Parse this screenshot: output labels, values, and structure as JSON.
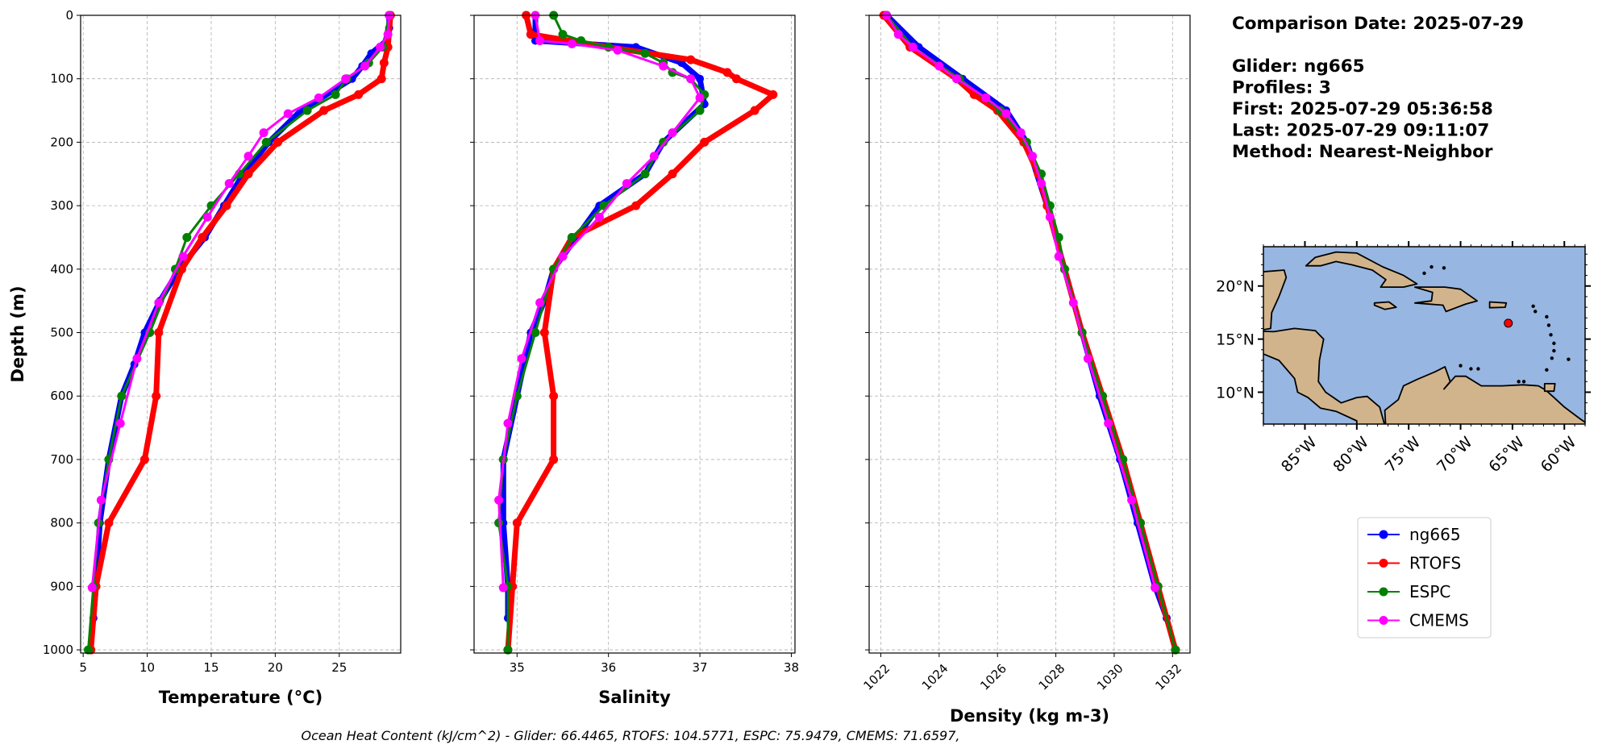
{
  "info": {
    "lines": [
      "Comparison Date: 2025-07-29",
      "",
      "Glider: ng665",
      "Profiles: 3",
      "First: 2025-07-29 05:36:58",
      "Last: 2025-07-29 09:11:07",
      "Method: Nearest-Neighbor"
    ]
  },
  "footer": "Ocean Heat Content (kJ/cm^2) - Glider: 66.4465,  RTOFS: 104.5771,  ESPC: 75.9479,  CMEMS: 71.6597,",
  "legend": [
    {
      "name": "ng665",
      "color": "#0000ff"
    },
    {
      "name": "RTOFS",
      "color": "#ff0000"
    },
    {
      "name": "ESPC",
      "color": "#008000"
    },
    {
      "name": "CMEMS",
      "color": "#ff00ff"
    }
  ],
  "map": {
    "lon_range": [
      -89,
      -58
    ],
    "lat_range": [
      7,
      23.7
    ],
    "lon_ticks": [
      -85,
      -80,
      -75,
      -70,
      -65,
      -60
    ],
    "lon_tick_labels": [
      "85°W",
      "80°W",
      "75°W",
      "70°W",
      "65°W",
      "60°W"
    ],
    "lat_ticks": [
      10,
      15,
      20
    ],
    "lat_tick_labels": [
      "10°N",
      "15°N",
      "20°N"
    ],
    "glider_position": {
      "lon": -65.4,
      "lat": 16.5
    },
    "ocean_color": "#97b6e1",
    "land_color": "#d2b48c"
  },
  "chart_data": [
    {
      "type": "line",
      "title": "",
      "xlabel": "Temperature (°C)",
      "ylabel": "Depth (m)",
      "xlim": [
        4.8,
        29.8
      ],
      "ylim": [
        1005,
        0
      ],
      "xticks": [
        5,
        10,
        15,
        20,
        25
      ],
      "yticks": [
        0,
        100,
        200,
        300,
        400,
        500,
        600,
        700,
        800,
        900,
        1000
      ],
      "grid": true,
      "series": [
        {
          "name": "ng665",
          "depth": [
            0,
            20,
            40,
            60,
            80,
            100,
            150,
            200,
            250,
            300,
            350,
            400,
            450,
            500,
            550,
            600,
            700,
            800,
            900,
            950
          ],
          "values": [
            28.9,
            28.9,
            28.7,
            27.5,
            26.8,
            26,
            22,
            19.5,
            17.5,
            16,
            14.5,
            12.5,
            11,
            9.8,
            9,
            8,
            7,
            6.3,
            6,
            5.8
          ]
        },
        {
          "name": "RTOFS",
          "depth": [
            0,
            50,
            75,
            100,
            125,
            150,
            200,
            250,
            300,
            350,
            400,
            500,
            600,
            700,
            800,
            900,
            1000
          ],
          "values": [
            29,
            28.8,
            28.5,
            28.3,
            26.5,
            23.8,
            20.2,
            17.9,
            16.2,
            14.3,
            12.7,
            10.9,
            10.7,
            9.8,
            7,
            6,
            5.6
          ]
        },
        {
          "name": "ESPC",
          "depth": [
            0,
            50,
            75,
            100,
            125,
            150,
            200,
            250,
            300,
            350,
            400,
            500,
            600,
            700,
            800,
            900,
            1000
          ],
          "values": [
            28.9,
            28.4,
            27.3,
            25.6,
            24.7,
            22.5,
            19.3,
            17.2,
            15,
            13.1,
            12.2,
            10.2,
            8,
            7,
            6.2,
            5.8,
            5.4
          ]
        },
        {
          "name": "CMEMS",
          "depth": [
            0,
            30,
            50,
            80,
            100,
            130,
            155,
            185,
            222,
            265,
            318,
            380,
            453,
            541,
            643,
            764,
            902
          ],
          "values": [
            28.9,
            28.8,
            28.2,
            27,
            25.5,
            23.4,
            21,
            19.1,
            17.9,
            16.4,
            14.7,
            12.8,
            10.9,
            9.2,
            7.9,
            6.4,
            5.7
          ]
        }
      ]
    },
    {
      "type": "line",
      "xlabel": "Salinity",
      "xlim": [
        34.53,
        38.04
      ],
      "ylim": [
        1005,
        0
      ],
      "xticks": [
        35,
        36,
        37,
        38
      ],
      "grid": true,
      "series": [
        {
          "name": "ng665",
          "depth": [
            0,
            40,
            50,
            75,
            100,
            140,
            200,
            250,
            300,
            400,
            450,
            500,
            600,
            700,
            800,
            900,
            950
          ],
          "values": [
            35.2,
            35.2,
            36.3,
            36.8,
            37.0,
            37.05,
            36.6,
            36.4,
            35.9,
            35.4,
            35.3,
            35.15,
            35.0,
            34.85,
            34.85,
            34.9,
            34.9
          ]
        },
        {
          "name": "RTOFS",
          "depth": [
            0,
            30,
            50,
            70,
            90,
            100,
            125,
            150,
            200,
            250,
            300,
            350,
            400,
            500,
            600,
            700,
            800,
            900,
            1000
          ],
          "values": [
            35.1,
            35.15,
            36.0,
            36.9,
            37.3,
            37.4,
            37.8,
            37.6,
            37.05,
            36.7,
            36.3,
            35.6,
            35.4,
            35.3,
            35.4,
            35.4,
            35.0,
            34.95,
            34.9
          ]
        },
        {
          "name": "ESPC",
          "depth": [
            0,
            30,
            40,
            50,
            60,
            75,
            90,
            100,
            125,
            150,
            200,
            250,
            300,
            350,
            400,
            500,
            600,
            700,
            800,
            900,
            1000
          ],
          "values": [
            35.4,
            35.5,
            35.7,
            36.0,
            36.4,
            36.6,
            36.7,
            36.9,
            37.05,
            37.0,
            36.6,
            36.4,
            35.95,
            35.6,
            35.4,
            35.2,
            35.0,
            34.85,
            34.8,
            34.9,
            34.9
          ]
        },
        {
          "name": "CMEMS",
          "depth": [
            0,
            40,
            45,
            55,
            80,
            100,
            130,
            185,
            222,
            265,
            318,
            380,
            453,
            541,
            643,
            764,
            902
          ],
          "values": [
            35.2,
            35.25,
            35.6,
            36.1,
            36.6,
            36.9,
            37.0,
            36.7,
            36.5,
            36.2,
            35.9,
            35.5,
            35.25,
            35.05,
            34.9,
            34.8,
            34.85
          ]
        }
      ]
    },
    {
      "type": "line",
      "xlabel": "Density (kg m-3)",
      "xlim": [
        1021.6,
        1032.6
      ],
      "ylim": [
        1005,
        0
      ],
      "xticks": [
        1022,
        1024,
        1026,
        1028,
        1030,
        1032
      ],
      "grid": true,
      "series": [
        {
          "name": "ng665",
          "depth": [
            0,
            50,
            100,
            150,
            200,
            300,
            400,
            500,
            600,
            700,
            800,
            900,
            950
          ],
          "values": [
            1022.2,
            1023.3,
            1024.8,
            1026.3,
            1027.0,
            1027.7,
            1028.3,
            1028.9,
            1029.5,
            1030.2,
            1030.8,
            1031.4,
            1031.8
          ]
        },
        {
          "name": "RTOFS",
          "depth": [
            0,
            50,
            100,
            125,
            150,
            200,
            250,
            300,
            400,
            500,
            600,
            700,
            800,
            900,
            1000
          ],
          "values": [
            1022.1,
            1023.0,
            1024.6,
            1025.2,
            1026.0,
            1026.9,
            1027.4,
            1027.7,
            1028.3,
            1028.9,
            1029.6,
            1030.3,
            1030.9,
            1031.5,
            1032.1
          ]
        },
        {
          "name": "ESPC",
          "depth": [
            0,
            50,
            100,
            150,
            200,
            250,
            300,
            350,
            400,
            500,
            600,
            700,
            800,
            900,
            1000
          ],
          "values": [
            1022.2,
            1023.1,
            1024.7,
            1026.1,
            1027.0,
            1027.5,
            1027.8,
            1028.1,
            1028.3,
            1028.9,
            1029.6,
            1030.3,
            1030.9,
            1031.5,
            1032.1
          ]
        },
        {
          "name": "CMEMS",
          "depth": [
            0,
            30,
            50,
            80,
            100,
            130,
            155,
            185,
            222,
            265,
            318,
            380,
            453,
            541,
            643,
            764,
            902
          ],
          "values": [
            1022.2,
            1022.6,
            1023.1,
            1024.0,
            1024.6,
            1025.6,
            1026.3,
            1026.8,
            1027.2,
            1027.5,
            1027.8,
            1028.1,
            1028.6,
            1029.1,
            1029.8,
            1030.6,
            1031.4
          ]
        }
      ]
    }
  ]
}
